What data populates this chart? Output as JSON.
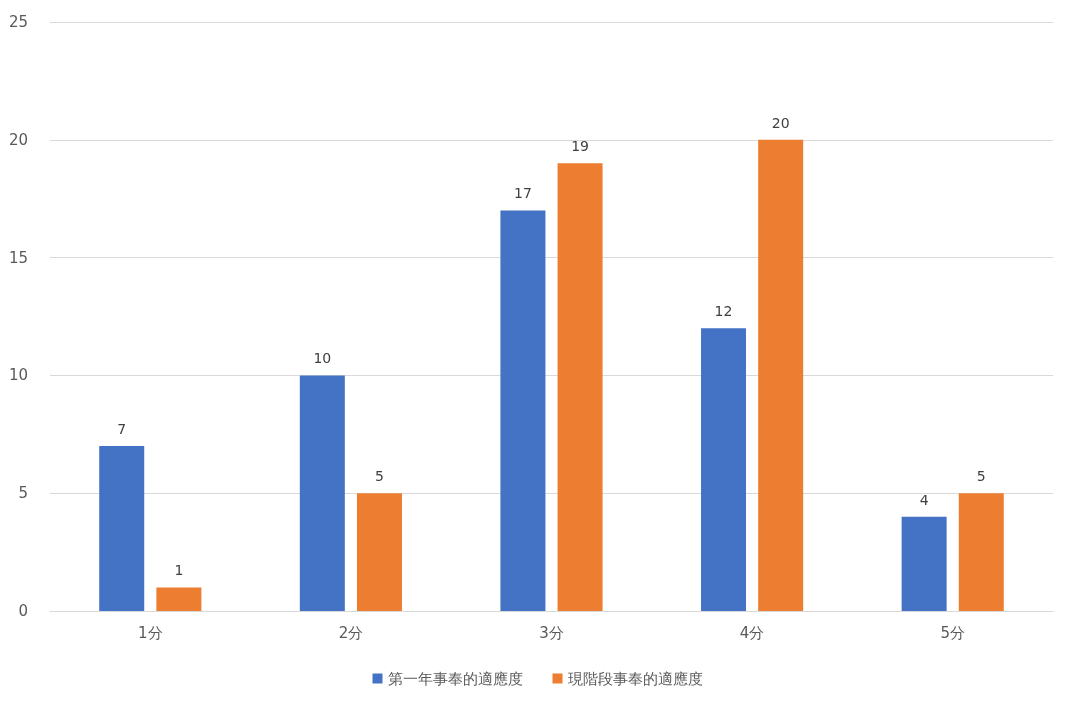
{
  "chart_data": {
    "type": "bar",
    "categories": [
      "1分",
      "2分",
      "3分",
      "4分",
      "5分"
    ],
    "series": [
      {
        "name": "第一年事奉的適應度",
        "color": "#4472c4",
        "values": [
          7,
          10,
          17,
          12,
          4
        ]
      },
      {
        "name": "現階段事奉的適應度",
        "color": "#ed7d31",
        "values": [
          1,
          5,
          19,
          20,
          5
        ]
      }
    ],
    "ylim": [
      0,
      25
    ],
    "yticks": [
      0,
      5,
      10,
      15,
      20,
      25
    ],
    "grid": "y",
    "legend": "bottom",
    "data_labels": true
  }
}
